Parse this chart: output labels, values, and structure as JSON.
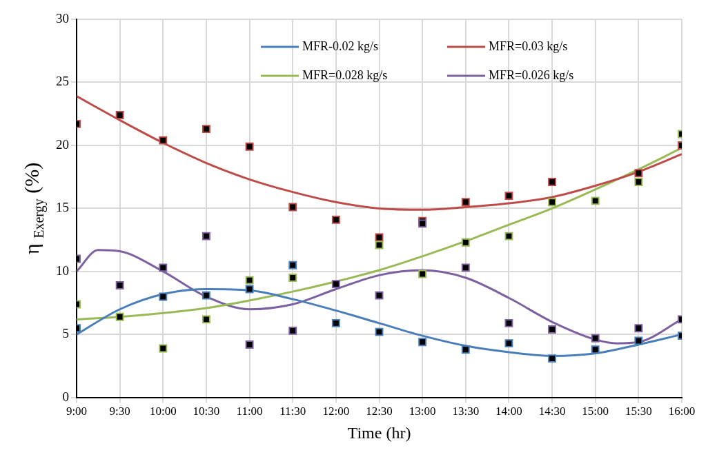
{
  "chart_data": {
    "type": "scatter",
    "xlabel": "Time (hr)",
    "ylabel": "η $_{Exergy}$ (%)",
    "x": [
      9,
      9.5,
      10,
      10.5,
      11,
      11.5,
      12,
      12.5,
      13,
      13.5,
      14,
      14.5,
      15,
      15.5,
      16
    ],
    "xlim": [
      9,
      16
    ],
    "xticks": [
      {
        "value": 9,
        "label": "9:00"
      },
      {
        "value": 9.5,
        "label": "9:30"
      },
      {
        "value": 10,
        "label": "10:00"
      },
      {
        "value": 10.5,
        "label": "10:30"
      },
      {
        "value": 11,
        "label": "11:00"
      },
      {
        "value": 11.5,
        "label": "11:30"
      },
      {
        "value": 12,
        "label": "12:00"
      },
      {
        "value": 12.5,
        "label": "12:30"
      },
      {
        "value": 13,
        "label": "13:00"
      },
      {
        "value": 13.5,
        "label": "13:30"
      },
      {
        "value": 14,
        "label": "14:00"
      },
      {
        "value": 14.5,
        "label": "14:30"
      },
      {
        "value": 15,
        "label": "15:00"
      },
      {
        "value": 15.5,
        "label": "15:30"
      },
      {
        "value": 16,
        "label": "16:00"
      }
    ],
    "ylim": [
      0,
      30
    ],
    "yticks": [
      0,
      5,
      10,
      15,
      20,
      25,
      30
    ],
    "grid": true,
    "legend": "top right",
    "marker": "square",
    "series": [
      {
        "color": "#4a7ebb",
        "values": [
          5.5,
          null,
          8.0,
          8.1,
          8.6,
          10.5,
          5.9,
          5.2,
          4.4,
          3.8,
          4.3,
          3.1,
          3.8,
          4.5,
          4.9
        ]
      },
      {
        "color": "#be4b48",
        "values": [
          21.7,
          22.4,
          20.4,
          21.3,
          19.9,
          15.1,
          14.1,
          12.7,
          14.0,
          15.5,
          16.0,
          17.1,
          null,
          17.8,
          20.0
        ]
      },
      {
        "color": "#98b954",
        "values": [
          7.4,
          6.4,
          3.9,
          6.2,
          9.3,
          9.5,
          null,
          12.1,
          9.8,
          12.3,
          12.8,
          15.5,
          15.6,
          17.1,
          20.9
        ]
      },
      {
        "color": "#7d60a0",
        "values": [
          11.0,
          8.9,
          10.3,
          12.8,
          4.2,
          5.3,
          9.0,
          8.1,
          13.8,
          10.3,
          5.9,
          5.4,
          4.7,
          5.5,
          6.2
        ]
      },
      {
        "type": "line",
        "name": "MFR-0.02 kg/s",
        "color": "#4a7ebb",
        "marker": "none",
        "line_style": "solid",
        "x": [
          9,
          9.5,
          10,
          10.5,
          11,
          11.5,
          12,
          12.5,
          13,
          13.5,
          14,
          14.5,
          15,
          15.5,
          16
        ],
        "values": [
          5.0,
          7.0,
          8.2,
          8.6,
          8.5,
          7.8,
          6.9,
          5.9,
          4.9,
          4.1,
          3.6,
          3.3,
          3.5,
          4.2,
          5.0
        ]
      },
      {
        "type": "line",
        "name": "MFR=0.03 kg/s",
        "color": "#be4b48",
        "marker": "none",
        "line_style": "solid",
        "x": [
          9,
          9.5,
          10,
          10.5,
          11,
          11.5,
          12,
          12.5,
          13,
          13.5,
          14,
          14.5,
          15,
          15.5,
          16
        ],
        "values": [
          23.9,
          22.0,
          20.2,
          18.6,
          17.3,
          16.3,
          15.5,
          15.0,
          14.9,
          15.1,
          15.4,
          15.9,
          16.8,
          17.9,
          19.3
        ]
      },
      {
        "type": "line",
        "name": "MFR=0.028 kg/s",
        "color": "#98b954",
        "marker": "none",
        "line_style": "solid",
        "x": [
          9,
          9.5,
          10,
          10.5,
          11,
          11.5,
          12,
          12.5,
          13,
          13.5,
          14,
          14.5,
          15,
          15.5,
          16
        ],
        "values": [
          6.2,
          6.4,
          6.7,
          7.1,
          7.7,
          8.4,
          9.2,
          10.1,
          11.2,
          12.4,
          13.7,
          15.0,
          16.5,
          18.1,
          19.8
        ]
      },
      {
        "type": "line",
        "name": "MFR=0.026 kg/s",
        "color": "#7d60a0",
        "marker": "none",
        "line_style": "solid",
        "x": [
          9,
          9.25,
          9.5,
          10,
          10.5,
          11,
          11.5,
          12,
          12.5,
          13,
          13.5,
          14,
          14.5,
          15,
          15.25,
          15.5,
          16
        ],
        "values": [
          10.0,
          11.7,
          11.6,
          10.0,
          8.0,
          7.0,
          7.4,
          8.6,
          9.7,
          10.1,
          9.5,
          7.9,
          6.0,
          4.6,
          4.3,
          4.4,
          6.2
        ]
      }
    ]
  }
}
